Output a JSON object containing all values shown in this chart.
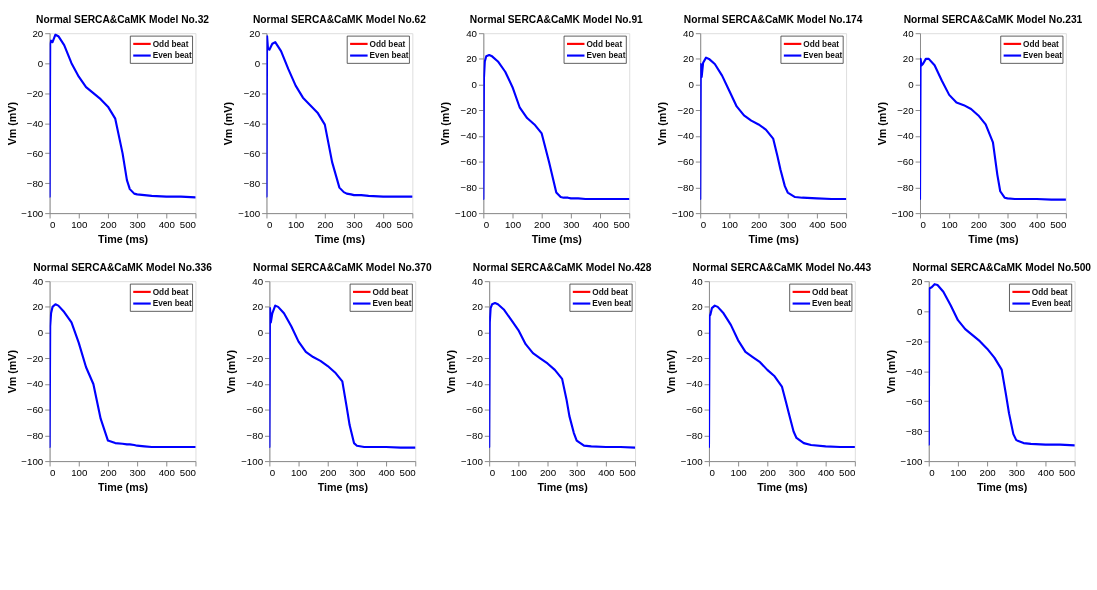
{
  "chart_data": [
    {
      "type": "line",
      "title": "Normal SERCA&CaMK Model No.32",
      "xlabel": "Time (ms)",
      "ylabel": "Vm (mV)",
      "legend": "top right",
      "grid": false,
      "line_style": "solid",
      "xlim": [
        0,
        500
      ],
      "xticks": [
        0,
        100,
        200,
        300,
        400,
        500
      ],
      "ylim": [
        -100,
        20
      ],
      "yticks": [
        -100,
        -80,
        -60,
        -40,
        -20,
        0,
        20
      ],
      "x": [
        0,
        2,
        5,
        10,
        20,
        30,
        50,
        75,
        100,
        125,
        150,
        175,
        200,
        225,
        250,
        265,
        275,
        290,
        300,
        325,
        350,
        400,
        450,
        500
      ],
      "series": [
        {
          "name": "Odd beat",
          "color": "#ff0000",
          "values": [
            null,
            null,
            null,
            null,
            null,
            null,
            null,
            null,
            null,
            null,
            null,
            null,
            null,
            null,
            null,
            null,
            null,
            null,
            null,
            null,
            null,
            null,
            null,
            null
          ]
        },
        {
          "name": "Even beat",
          "color": "#0000ff",
          "values": [
            -89,
            13,
            15,
            14,
            19,
            18,
            12,
            0,
            -9,
            -16,
            -20,
            -24,
            -29,
            -37,
            -60,
            -78,
            -84,
            -87,
            -87.5,
            -88,
            -88.5,
            -89,
            -89,
            -89.5
          ]
        }
      ]
    },
    {
      "type": "line",
      "title": "Normal SERCA&CaMK Model No.62",
      "xlabel": "Time (ms)",
      "ylabel": "Vm (mV)",
      "legend": "top right",
      "grid": false,
      "line_style": "solid",
      "xlim": [
        0,
        500
      ],
      "xticks": [
        0,
        100,
        200,
        300,
        400,
        500
      ],
      "ylim": [
        -100,
        20
      ],
      "yticks": [
        -100,
        -80,
        -60,
        -40,
        -20,
        0,
        20
      ],
      "x": [
        0,
        2,
        5,
        10,
        20,
        30,
        50,
        75,
        100,
        125,
        150,
        175,
        200,
        225,
        250,
        265,
        275,
        290,
        300,
        325,
        350,
        400,
        450,
        500
      ],
      "series": [
        {
          "name": "Odd beat",
          "color": "#ff0000",
          "values": [
            null,
            null,
            null,
            null,
            null,
            null,
            null,
            null,
            null,
            null,
            null,
            null,
            null,
            null,
            null,
            null,
            null,
            null,
            null,
            null,
            null,
            null,
            null,
            null
          ]
        },
        {
          "name": "Even beat",
          "color": "#0000ff",
          "values": [
            -89,
            18,
            10,
            9,
            13,
            14,
            8,
            -4,
            -15,
            -23,
            -28,
            -33,
            -41,
            -66,
            -83,
            -86,
            -87,
            -87.5,
            -88,
            -88,
            -88.5,
            -89,
            -89,
            -89
          ]
        }
      ]
    },
    {
      "type": "line",
      "title": "Normal SERCA&CaMK Model No.91",
      "xlabel": "Time (ms)",
      "ylabel": "Vm (mV)",
      "legend": "top right",
      "grid": false,
      "line_style": "solid",
      "xlim": [
        0,
        500
      ],
      "xticks": [
        0,
        100,
        200,
        300,
        400,
        500
      ],
      "ylim": [
        -100,
        40
      ],
      "yticks": [
        -100,
        -80,
        -60,
        -40,
        -20,
        0,
        20,
        40
      ],
      "x": [
        0,
        2,
        5,
        10,
        20,
        30,
        50,
        75,
        100,
        125,
        150,
        175,
        200,
        225,
        250,
        265,
        275,
        290,
        300,
        325,
        350,
        400,
        450,
        500
      ],
      "series": [
        {
          "name": "Odd beat",
          "color": "#ff0000",
          "values": [
            null,
            null,
            null,
            null,
            null,
            null,
            null,
            null,
            null,
            null,
            null,
            null,
            null,
            null,
            null,
            null,
            null,
            null,
            null,
            null,
            null,
            null,
            null,
            null
          ]
        },
        {
          "name": "Even beat",
          "color": "#0000ff",
          "values": [
            -89,
            5,
            18,
            22,
            23,
            22,
            18,
            10,
            -2,
            -18,
            -26,
            -31,
            -38,
            -60,
            -84,
            -87.5,
            -88,
            -88,
            -88.5,
            -88.5,
            -89,
            -89,
            -89,
            -89
          ]
        }
      ]
    },
    {
      "type": "line",
      "title": "Normal SERCA&CaMK Model No.174",
      "xlabel": "Time (ms)",
      "ylabel": "Vm (mV)",
      "legend": "top right",
      "grid": false,
      "line_style": "solid",
      "xlim": [
        0,
        500
      ],
      "xticks": [
        0,
        100,
        200,
        300,
        400,
        500
      ],
      "ylim": [
        -100,
        40
      ],
      "yticks": [
        -100,
        -80,
        -60,
        -40,
        -20,
        0,
        20,
        40
      ],
      "x": [
        0,
        2,
        5,
        10,
        20,
        30,
        50,
        75,
        100,
        125,
        150,
        175,
        200,
        225,
        250,
        265,
        275,
        290,
        300,
        325,
        350,
        400,
        450,
        500
      ],
      "series": [
        {
          "name": "Odd beat",
          "color": "#ff0000",
          "values": [
            null,
            null,
            null,
            null,
            null,
            null,
            null,
            null,
            null,
            null,
            null,
            null,
            null,
            null,
            null,
            null,
            null,
            null,
            null,
            null,
            null,
            null,
            null,
            null
          ]
        },
        {
          "name": "Even beat",
          "color": "#0000ff",
          "values": [
            -89,
            16,
            6,
            17,
            21,
            20,
            16,
            7,
            -5,
            -17,
            -24,
            -28,
            -31,
            -35,
            -42,
            -56,
            -66,
            -79,
            -84,
            -87.5,
            -88,
            -88.5,
            -89,
            -89
          ]
        }
      ]
    },
    {
      "type": "line",
      "title": "Normal SERCA&CaMK Model No.231",
      "xlabel": "Time (ms)",
      "ylabel": "Vm (mV)",
      "legend": "top right",
      "grid": false,
      "line_style": "solid",
      "xlim": [
        0,
        500
      ],
      "xticks": [
        0,
        100,
        200,
        300,
        400,
        500
      ],
      "ylim": [
        -100,
        40
      ],
      "yticks": [
        -100,
        -80,
        -60,
        -40,
        -20,
        0,
        20,
        40
      ],
      "x": [
        0,
        2,
        5,
        10,
        20,
        30,
        50,
        75,
        100,
        125,
        150,
        175,
        200,
        225,
        250,
        265,
        275,
        290,
        300,
        325,
        350,
        400,
        450,
        500
      ],
      "series": [
        {
          "name": "Odd beat",
          "color": "#ff0000",
          "values": [
            null,
            null,
            null,
            null,
            null,
            null,
            null,
            null,
            null,
            null,
            null,
            null,
            null,
            null,
            null,
            null,
            null,
            null,
            null,
            null,
            null,
            null,
            null,
            null
          ]
        },
        {
          "name": "Even beat",
          "color": "#0000ff",
          "values": [
            -89,
            20,
            15,
            16,
            20,
            20,
            15,
            3,
            -8,
            -14,
            -16,
            -19,
            -24,
            -31,
            -45,
            -70,
            -83,
            -88,
            -88.5,
            -89,
            -89,
            -89,
            -89.5,
            -89.5
          ]
        }
      ]
    },
    {
      "type": "line",
      "title": "Normal SERCA&CaMK Model No.336",
      "xlabel": "Time (ms)",
      "ylabel": "Vm (mV)",
      "legend": "top right",
      "grid": false,
      "line_style": "solid",
      "xlim": [
        0,
        500
      ],
      "xticks": [
        0,
        100,
        200,
        300,
        400,
        500
      ],
      "ylim": [
        -100,
        40
      ],
      "yticks": [
        -100,
        -80,
        -60,
        -40,
        -20,
        0,
        20,
        40
      ],
      "x": [
        0,
        2,
        5,
        10,
        20,
        30,
        50,
        75,
        100,
        125,
        150,
        175,
        200,
        225,
        250,
        265,
        275,
        290,
        300,
        325,
        350,
        400,
        450,
        500
      ],
      "series": [
        {
          "name": "Odd beat",
          "color": "#ff0000",
          "values": [
            null,
            null,
            null,
            null,
            null,
            null,
            null,
            null,
            null,
            null,
            null,
            null,
            null,
            null,
            null,
            null,
            null,
            null,
            null,
            null,
            null,
            null,
            null,
            null
          ]
        },
        {
          "name": "Even beat",
          "color": "#0000ff",
          "values": [
            -89,
            5,
            15,
            20,
            22,
            21,
            16,
            8,
            -8,
            -27,
            -40,
            -67,
            -84,
            -86,
            -86.5,
            -87,
            -87,
            -87.5,
            -88,
            -88.5,
            -89,
            -89,
            -89,
            -89
          ]
        }
      ]
    },
    {
      "type": "line",
      "title": "Normal SERCA&CaMK Model No.370",
      "xlabel": "Time (ms)",
      "ylabel": "Vm (mV)",
      "legend": "top right",
      "grid": false,
      "line_style": "solid",
      "xlim": [
        0,
        500
      ],
      "xticks": [
        0,
        100,
        200,
        300,
        400,
        500
      ],
      "ylim": [
        -100,
        40
      ],
      "yticks": [
        -100,
        -80,
        -60,
        -40,
        -20,
        0,
        20,
        40
      ],
      "x": [
        0,
        2,
        5,
        10,
        20,
        30,
        50,
        75,
        100,
        125,
        150,
        175,
        200,
        225,
        250,
        265,
        275,
        290,
        300,
        325,
        350,
        400,
        450,
        500
      ],
      "series": [
        {
          "name": "Odd beat",
          "color": "#ff0000",
          "values": [
            null,
            null,
            null,
            null,
            null,
            null,
            null,
            null,
            null,
            null,
            null,
            null,
            null,
            null,
            null,
            null,
            null,
            null,
            null,
            null,
            null,
            null,
            null,
            null
          ]
        },
        {
          "name": "Even beat",
          "color": "#0000ff",
          "values": [
            -89,
            19,
            8,
            15,
            21,
            20,
            15,
            5,
            -7,
            -15,
            -19,
            -22,
            -26,
            -31,
            -38,
            -58,
            -72,
            -86,
            -88,
            -89,
            -89,
            -89,
            -89.5,
            -89.5
          ]
        }
      ]
    },
    {
      "type": "line",
      "title": "Normal SERCA&CaMK Model No.428",
      "xlabel": "Time (ms)",
      "ylabel": "Vm (mV)",
      "legend": "top right",
      "grid": false,
      "line_style": "solid",
      "xlim": [
        0,
        500
      ],
      "xticks": [
        0,
        100,
        200,
        300,
        400,
        500
      ],
      "ylim": [
        -100,
        40
      ],
      "yticks": [
        -100,
        -80,
        -60,
        -40,
        -20,
        0,
        20,
        40
      ],
      "x": [
        0,
        2,
        5,
        10,
        20,
        30,
        50,
        75,
        100,
        125,
        150,
        175,
        200,
        225,
        250,
        265,
        275,
        290,
        300,
        325,
        350,
        400,
        450,
        500
      ],
      "series": [
        {
          "name": "Odd beat",
          "color": "#ff0000",
          "values": [
            null,
            null,
            null,
            null,
            null,
            null,
            null,
            null,
            null,
            null,
            null,
            null,
            null,
            null,
            null,
            null,
            null,
            null,
            null,
            null,
            null,
            null,
            null,
            null
          ]
        },
        {
          "name": "Even beat",
          "color": "#0000ff",
          "values": [
            -89,
            8,
            19,
            22,
            23,
            22,
            18,
            10,
            2,
            -9,
            -16,
            -20,
            -24,
            -29,
            -36,
            -52,
            -65,
            -78,
            -84,
            -88,
            -88.5,
            -89,
            -89,
            -89.5
          ]
        }
      ]
    },
    {
      "type": "line",
      "title": "Normal SERCA&CaMK Model No.443",
      "xlabel": "Time (ms)",
      "ylabel": "Vm (mV)",
      "legend": "top right",
      "grid": false,
      "line_style": "solid",
      "xlim": [
        0,
        500
      ],
      "xticks": [
        0,
        100,
        200,
        300,
        400,
        500
      ],
      "ylim": [
        -100,
        40
      ],
      "yticks": [
        -100,
        -80,
        -60,
        -40,
        -20,
        0,
        20,
        40
      ],
      "x": [
        0,
        2,
        5,
        10,
        20,
        30,
        50,
        75,
        100,
        125,
        150,
        175,
        200,
        225,
        250,
        265,
        275,
        290,
        300,
        325,
        350,
        400,
        450,
        500
      ],
      "series": [
        {
          "name": "Odd beat",
          "color": "#ff0000",
          "values": [
            null,
            null,
            null,
            null,
            null,
            null,
            null,
            null,
            null,
            null,
            null,
            null,
            null,
            null,
            null,
            null,
            null,
            null,
            null,
            null,
            null,
            null,
            null,
            null
          ]
        },
        {
          "name": "Even beat",
          "color": "#0000ff",
          "values": [
            -89,
            13,
            14,
            19,
            21,
            20,
            15,
            6,
            -6,
            -15,
            -19,
            -23,
            -29,
            -34,
            -42,
            -55,
            -64,
            -77,
            -82,
            -86,
            -87.5,
            -88.5,
            -89,
            -89
          ]
        }
      ]
    },
    {
      "type": "line",
      "title": "Normal SERCA&CaMK Model No.500",
      "xlabel": "Time (ms)",
      "ylabel": "Vm (mV)",
      "legend": "top right",
      "grid": false,
      "line_style": "solid",
      "xlim": [
        0,
        500
      ],
      "xticks": [
        0,
        100,
        200,
        300,
        400,
        500
      ],
      "ylim": [
        -100,
        20
      ],
      "yticks": [
        -100,
        -80,
        -60,
        -40,
        -20,
        0,
        20
      ],
      "x": [
        0,
        2,
        5,
        10,
        20,
        30,
        50,
        75,
        100,
        125,
        150,
        175,
        200,
        225,
        250,
        265,
        275,
        290,
        300,
        325,
        350,
        400,
        450,
        500
      ],
      "series": [
        {
          "name": "Odd beat",
          "color": "#ff0000",
          "values": [
            null,
            null,
            null,
            null,
            null,
            null,
            null,
            null,
            null,
            null,
            null,
            null,
            null,
            null,
            null,
            null,
            null,
            null,
            null,
            null,
            null,
            null,
            null,
            null
          ]
        },
        {
          "name": "Even beat",
          "color": "#0000ff",
          "values": [
            -89,
            15,
            15.5,
            16,
            18,
            17.5,
            13,
            4,
            -6,
            -12,
            -16,
            -20,
            -25,
            -31,
            -39,
            -56,
            -68,
            -82,
            -86,
            -88,
            -88.5,
            -89,
            -89,
            -89.5
          ]
        }
      ]
    }
  ]
}
